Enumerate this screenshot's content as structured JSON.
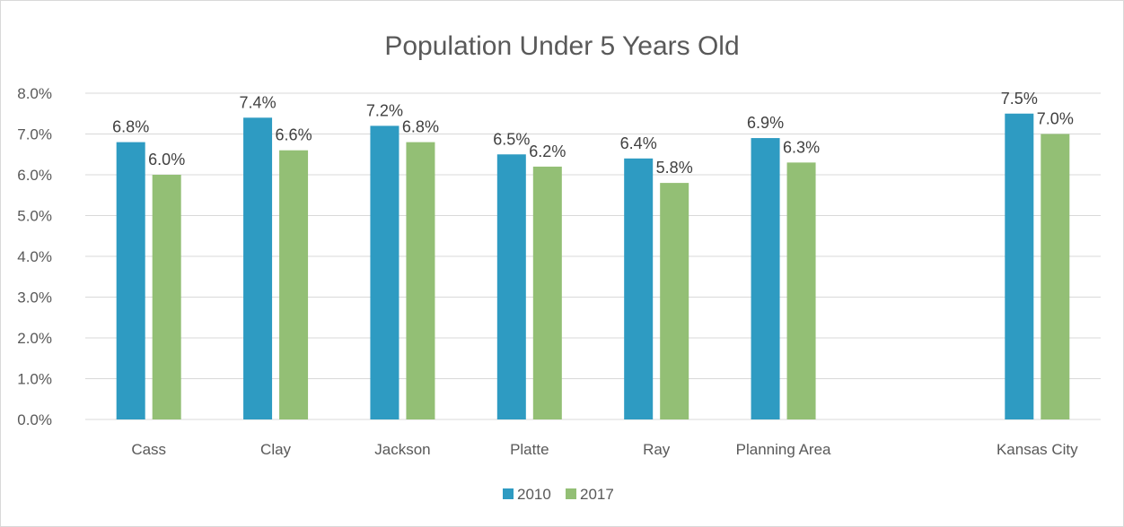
{
  "chart_data": {
    "type": "bar",
    "title": "Population Under 5 Years Old",
    "xlabel": "",
    "ylabel": "",
    "categories": [
      "Cass",
      "Clay",
      "Jackson",
      "Platte",
      "Ray",
      "Planning Area",
      "",
      "Kansas City"
    ],
    "series": [
      {
        "name": "2010",
        "color": "#2e9bc2",
        "values": [
          6.8,
          7.4,
          7.2,
          6.5,
          6.4,
          6.9,
          null,
          7.5
        ],
        "labels": [
          "6.8%",
          "7.4%",
          "7.2%",
          "6.5%",
          "6.4%",
          "6.9%",
          "",
          "7.5%"
        ]
      },
      {
        "name": "2017",
        "color": "#93bf75",
        "values": [
          6.0,
          6.6,
          6.8,
          6.2,
          5.8,
          6.3,
          null,
          7.0
        ],
        "labels": [
          "6.0%",
          "6.6%",
          "6.8%",
          "6.2%",
          "5.8%",
          "6.3%",
          "",
          "7.0%"
        ]
      }
    ],
    "ylim": [
      0,
      8
    ],
    "yticks": [
      0,
      1,
      2,
      3,
      4,
      5,
      6,
      7,
      8
    ],
    "ytick_labels": [
      "0.0%",
      "1.0%",
      "2.0%",
      "3.0%",
      "4.0%",
      "5.0%",
      "6.0%",
      "7.0%",
      "8.0%"
    ],
    "grid": true,
    "legend_position": "bottom"
  }
}
